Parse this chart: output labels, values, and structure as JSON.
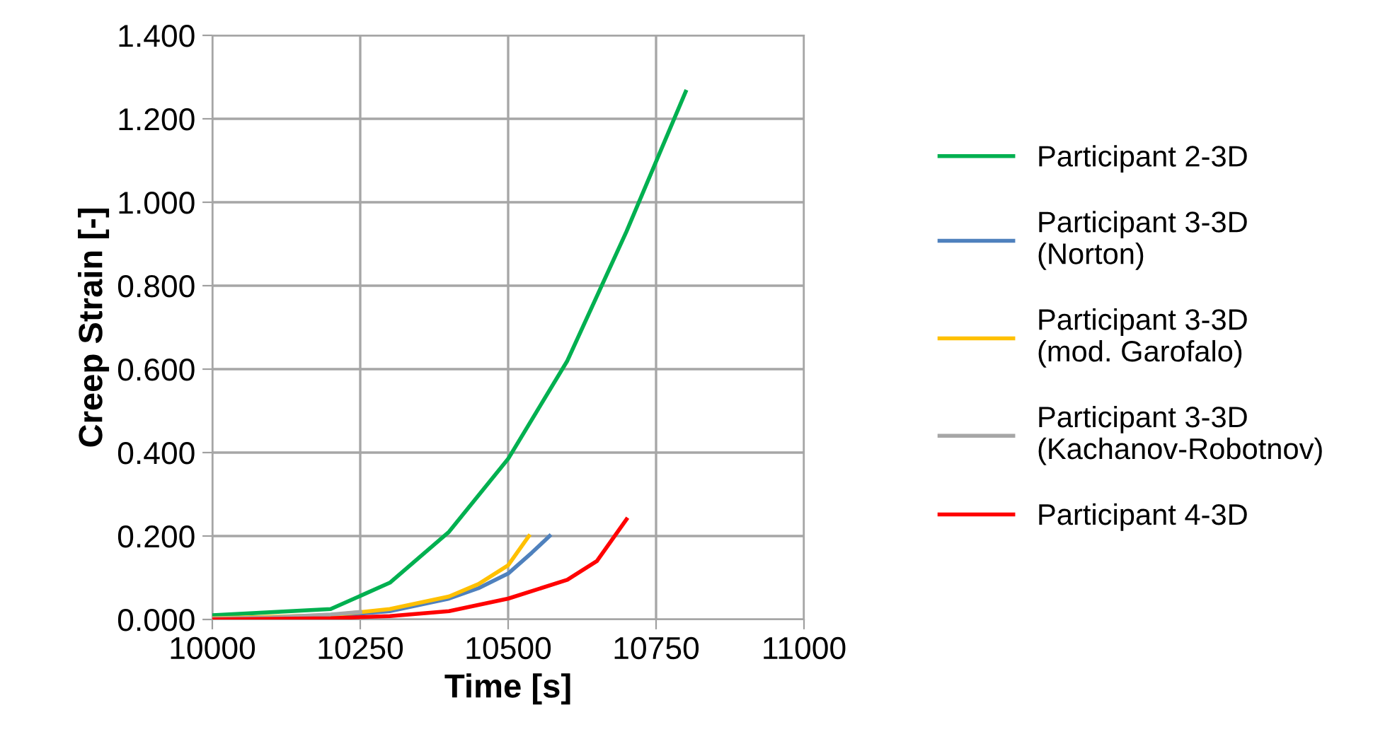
{
  "chart_data": {
    "type": "line",
    "xlabel": "Time [s]",
    "ylabel": "Creep Strain [-]",
    "xlim": [
      10000,
      11000
    ],
    "xticks": [
      10000,
      10250,
      10500,
      10750,
      11000
    ],
    "ylim": [
      0,
      1.4
    ],
    "yticks": [
      {
        "value": 0,
        "label": "0.000"
      },
      {
        "value": 0.2,
        "label": "0.200"
      },
      {
        "value": 0.4,
        "label": "0.400"
      },
      {
        "value": 0.6,
        "label": "0.600"
      },
      {
        "value": 0.8,
        "label": "0.800"
      },
      {
        "value": 1.0,
        "label": "1.000"
      },
      {
        "value": 1.2,
        "label": "1.200"
      },
      {
        "value": 1.4,
        "label": "1.400"
      }
    ],
    "grid": true,
    "legend": "right",
    "marker": "none",
    "line_style": "solid",
    "series": [
      {
        "name": "Participant 2-3D",
        "color": "#00b050",
        "x": [
          10000,
          10200,
          10300,
          10400,
          10500,
          10600,
          10700,
          10800
        ],
        "values": [
          0.01,
          0.025,
          0.088,
          0.21,
          0.385,
          0.62,
          0.93,
          1.265
        ]
      },
      {
        "name": "Participant 3-3D\n(Norton)",
        "color": "#4f81bd",
        "x": [
          10000,
          10200,
          10300,
          10400,
          10450,
          10500,
          10540,
          10570
        ],
        "values": [
          0.002,
          0.008,
          0.02,
          0.05,
          0.075,
          0.11,
          0.16,
          0.2
        ]
      },
      {
        "name": "Participant 3-3D\n(mod. Garofalo)",
        "color": "#ffc000",
        "x": [
          10000,
          10200,
          10300,
          10400,
          10450,
          10500,
          10515,
          10535
        ],
        "values": [
          0.003,
          0.01,
          0.025,
          0.055,
          0.085,
          0.13,
          0.16,
          0.2
        ]
      },
      {
        "name": "Participant 3-3D\n(Kachanov-Robotnov)",
        "color": "#a6a6a6",
        "x": [
          10000,
          10100,
          10200,
          10250
        ],
        "values": [
          0.002,
          0.005,
          0.012,
          0.018
        ]
      },
      {
        "name": "Participant 4-3D",
        "color": "#ff0000",
        "x": [
          10000,
          10200,
          10300,
          10400,
          10500,
          10600,
          10650,
          10700
        ],
        "values": [
          0.0,
          0.003,
          0.008,
          0.02,
          0.05,
          0.095,
          0.14,
          0.24
        ]
      }
    ]
  }
}
